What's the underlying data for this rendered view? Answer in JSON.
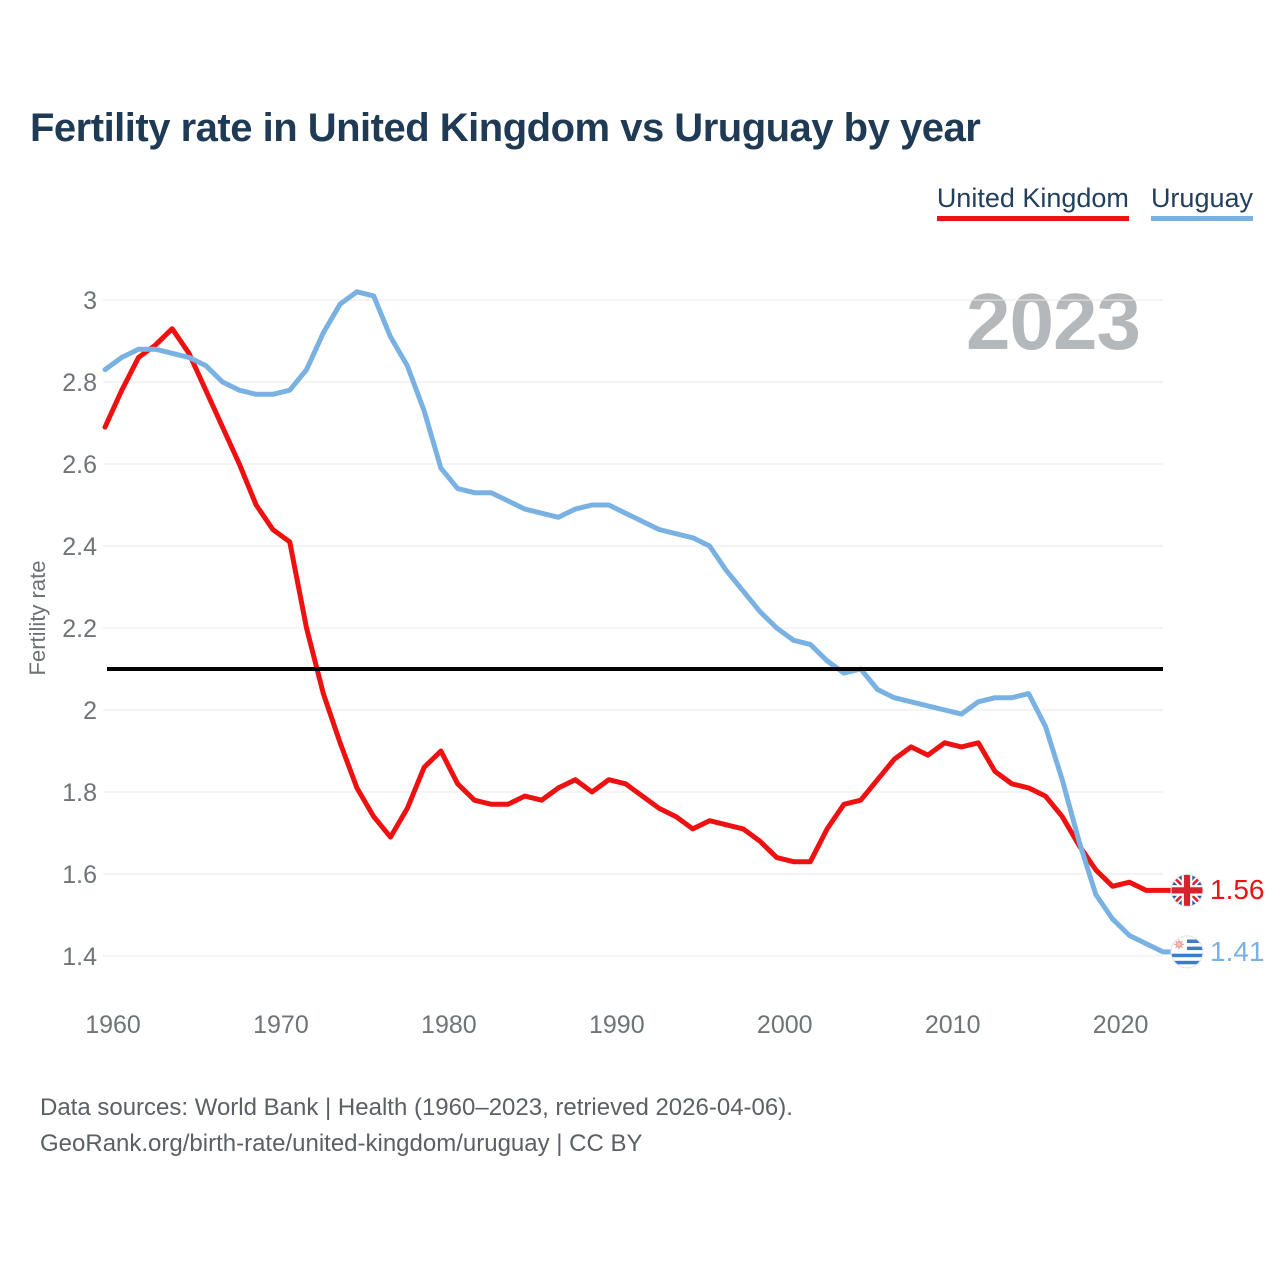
{
  "title": "Fertility rate in United Kingdom vs Uruguay by year",
  "watermark": "2023",
  "legend": [
    {
      "label": "United Kingdom",
      "color": "#ee1111"
    },
    {
      "label": "Uruguay",
      "color": "#79b2e2"
    }
  ],
  "chart_data": {
    "type": "line",
    "title": "Fertility rate in United Kingdom vs Uruguay by year",
    "xlabel": "",
    "ylabel": "Fertility rate",
    "ylim": [
      1.35,
      3.05
    ],
    "grid": true,
    "legend_position": "top-right",
    "reference_line": {
      "value": 2.1,
      "color": "#000000"
    },
    "yticks": [
      3,
      2.8,
      2.6,
      2.4,
      2.2,
      2,
      1.8,
      1.6,
      1.4
    ],
    "xticks": [
      1960,
      1970,
      1980,
      1990,
      2000,
      2010,
      2020
    ],
    "x": [
      1960,
      1961,
      1962,
      1963,
      1964,
      1965,
      1966,
      1967,
      1968,
      1969,
      1970,
      1971,
      1972,
      1973,
      1974,
      1975,
      1976,
      1977,
      1978,
      1979,
      1980,
      1981,
      1982,
      1983,
      1984,
      1985,
      1986,
      1987,
      1988,
      1989,
      1990,
      1991,
      1992,
      1993,
      1994,
      1995,
      1996,
      1997,
      1998,
      1999,
      2000,
      2001,
      2002,
      2003,
      2004,
      2005,
      2006,
      2007,
      2008,
      2009,
      2010,
      2011,
      2012,
      2013,
      2014,
      2015,
      2016,
      2017,
      2018,
      2019,
      2020,
      2021,
      2022,
      2023
    ],
    "series": [
      {
        "name": "United Kingdom",
        "color": "#ee1111",
        "flag": "uk",
        "end_label": "1.56",
        "values": [
          2.69,
          2.78,
          2.86,
          2.89,
          2.93,
          2.87,
          2.78,
          2.69,
          2.6,
          2.5,
          2.44,
          2.41,
          2.2,
          2.04,
          1.92,
          1.81,
          1.74,
          1.69,
          1.76,
          1.86,
          1.9,
          1.82,
          1.78,
          1.77,
          1.77,
          1.79,
          1.78,
          1.81,
          1.83,
          1.8,
          1.83,
          1.82,
          1.79,
          1.76,
          1.74,
          1.71,
          1.73,
          1.72,
          1.71,
          1.68,
          1.64,
          1.63,
          1.63,
          1.71,
          1.77,
          1.78,
          1.83,
          1.88,
          1.91,
          1.89,
          1.92,
          1.91,
          1.92,
          1.85,
          1.82,
          1.81,
          1.79,
          1.74,
          1.67,
          1.61,
          1.57,
          1.58,
          1.56,
          1.56
        ]
      },
      {
        "name": "Uruguay",
        "color": "#79b2e2",
        "flag": "uruguay",
        "end_label": "1.41",
        "values": [
          2.83,
          2.86,
          2.88,
          2.88,
          2.87,
          2.86,
          2.84,
          2.8,
          2.78,
          2.77,
          2.77,
          2.78,
          2.83,
          2.92,
          2.99,
          3.02,
          3.01,
          2.91,
          2.84,
          2.73,
          2.59,
          2.54,
          2.53,
          2.53,
          2.51,
          2.49,
          2.48,
          2.47,
          2.49,
          2.5,
          2.5,
          2.48,
          2.46,
          2.44,
          2.43,
          2.42,
          2.4,
          2.34,
          2.29,
          2.24,
          2.2,
          2.17,
          2.16,
          2.12,
          2.09,
          2.1,
          2.05,
          2.03,
          2.02,
          2.01,
          2.0,
          1.99,
          2.02,
          2.03,
          2.03,
          2.04,
          1.96,
          1.83,
          1.68,
          1.55,
          1.49,
          1.45,
          1.43,
          1.41
        ]
      }
    ]
  },
  "footer": {
    "line1": "Data sources: World Bank | Health (1960–2023, retrieved 2026-04-06).",
    "line2": "GeoRank.org/birth-rate/united-kingdom/uruguay | CC BY"
  }
}
